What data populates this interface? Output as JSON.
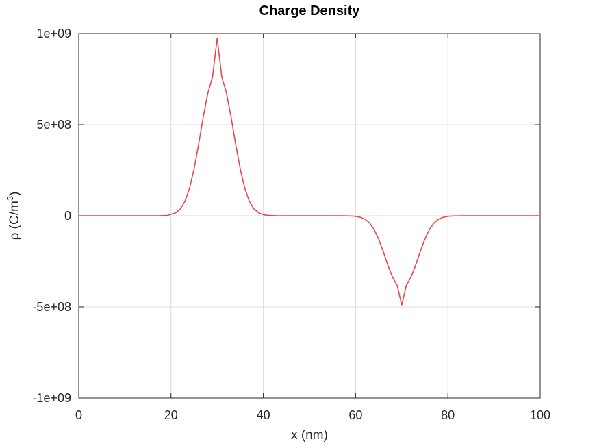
{
  "chart_data": {
    "type": "line",
    "title": "Charge Density",
    "xlabel": "x (nm)",
    "ylabel_main": "ρ (C/m",
    "ylabel_sup": "3",
    "ylabel_close": ")",
    "xlim": [
      0,
      100
    ],
    "ylim": [
      -1000000000,
      1000000000
    ],
    "x_ticks": [
      0,
      20,
      40,
      60,
      80,
      100
    ],
    "x_tick_labels": [
      "0",
      "20",
      "40",
      "60",
      "80",
      "100"
    ],
    "y_ticks": [
      1000000000,
      500000000,
      0,
      -500000000,
      -1000000000
    ],
    "y_tick_labels": [
      "1e+09",
      "5e+08",
      "0",
      "-5e+08",
      "-1e+09"
    ],
    "grid": true,
    "series": [
      {
        "color": "#e8474a",
        "x": [
          0,
          5,
          10,
          15,
          17,
          19,
          20,
          21,
          22,
          23,
          24,
          25,
          26,
          27,
          28,
          29,
          30,
          31,
          32,
          33,
          34,
          35,
          36,
          37,
          38,
          39,
          40,
          41,
          43,
          45,
          50,
          55,
          57,
          59,
          60,
          61,
          62,
          63,
          64,
          65,
          66,
          67,
          68,
          69,
          70,
          71,
          72,
          73,
          74,
          75,
          76,
          77,
          78,
          79,
          80,
          81,
          83,
          85,
          90,
          95,
          100
        ],
        "y": [
          0,
          0,
          0,
          0,
          0,
          1000000,
          8000000,
          16000000,
          37000000,
          78000000,
          150000000,
          257000000,
          394000000,
          544000000,
          675000000,
          762000000,
          975000000,
          762000000,
          675000000,
          544000000,
          394000000,
          257000000,
          150000000,
          78000000,
          37000000,
          16000000,
          6000000,
          2000000,
          0,
          0,
          0,
          0,
          0,
          -1000000,
          -3000000,
          -8000000,
          -18000000,
          -39000000,
          -75000000,
          -128000000,
          -197000000,
          -272000000,
          -337000000,
          -381000000,
          -490000000,
          -381000000,
          -337000000,
          -272000000,
          -197000000,
          -128000000,
          -75000000,
          -39000000,
          -18000000,
          -8000000,
          -3000000,
          -1000000,
          0,
          0,
          0,
          0,
          0
        ]
      }
    ]
  }
}
